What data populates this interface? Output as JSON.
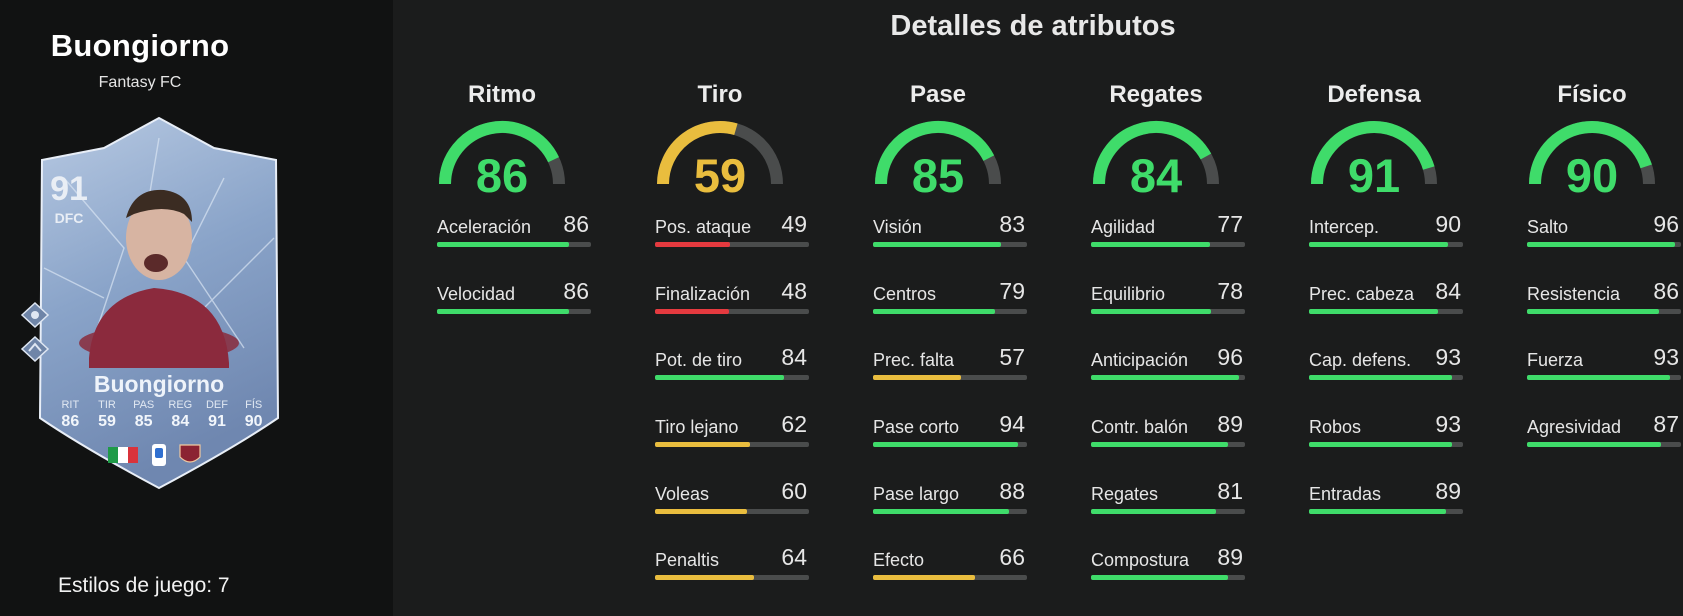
{
  "player": {
    "name": "Buongiorno",
    "subtitle": "Fantasy FC",
    "card": {
      "rating": "91",
      "position": "DFC",
      "name": "Buongiorno",
      "stat_labels": [
        "RIT",
        "TIR",
        "PAS",
        "REG",
        "DEF",
        "FÍS"
      ],
      "stat_values": [
        "86",
        "59",
        "85",
        "84",
        "91",
        "90"
      ]
    },
    "play_styles": "Estilos de juego: 7"
  },
  "title": "Detalles de atributos",
  "colors": {
    "green": "#3fdc6a",
    "yellow": "#e9bd3e",
    "red": "#e53a3f",
    "track": "#4a4c4c"
  },
  "categories": [
    {
      "name": "Ritmo",
      "value": 86,
      "color": "#3fdc6a",
      "attributes": [
        {
          "label": "Aceleración",
          "value": 86,
          "color": "#3fdc6a"
        },
        {
          "label": "Velocidad",
          "value": 86,
          "color": "#3fdc6a"
        }
      ]
    },
    {
      "name": "Tiro",
      "value": 59,
      "color": "#e9bd3e",
      "attributes": [
        {
          "label": "Pos. ataque",
          "value": 49,
          "color": "#e53a3f"
        },
        {
          "label": "Finalización",
          "value": 48,
          "color": "#e53a3f"
        },
        {
          "label": "Pot. de tiro",
          "value": 84,
          "color": "#3fdc6a"
        },
        {
          "label": "Tiro lejano",
          "value": 62,
          "color": "#e9bd3e"
        },
        {
          "label": "Voleas",
          "value": 60,
          "color": "#e9bd3e"
        },
        {
          "label": "Penaltis",
          "value": 64,
          "color": "#e9bd3e"
        }
      ]
    },
    {
      "name": "Pase",
      "value": 85,
      "color": "#3fdc6a",
      "attributes": [
        {
          "label": "Visión",
          "value": 83,
          "color": "#3fdc6a"
        },
        {
          "label": "Centros",
          "value": 79,
          "color": "#3fdc6a"
        },
        {
          "label": "Prec. falta",
          "value": 57,
          "color": "#e9bd3e"
        },
        {
          "label": "Pase corto",
          "value": 94,
          "color": "#3fdc6a"
        },
        {
          "label": "Pase largo",
          "value": 88,
          "color": "#3fdc6a"
        },
        {
          "label": "Efecto",
          "value": 66,
          "color": "#e9bd3e"
        }
      ]
    },
    {
      "name": "Regates",
      "value": 84,
      "color": "#3fdc6a",
      "attributes": [
        {
          "label": "Agilidad",
          "value": 77,
          "color": "#3fdc6a"
        },
        {
          "label": "Equilibrio",
          "value": 78,
          "color": "#3fdc6a"
        },
        {
          "label": "Anticipación",
          "value": 96,
          "color": "#3fdc6a"
        },
        {
          "label": "Contr. balón",
          "value": 89,
          "color": "#3fdc6a"
        },
        {
          "label": "Regates",
          "value": 81,
          "color": "#3fdc6a"
        },
        {
          "label": "Compostura",
          "value": 89,
          "color": "#3fdc6a"
        }
      ]
    },
    {
      "name": "Defensa",
      "value": 91,
      "color": "#3fdc6a",
      "attributes": [
        {
          "label": "Intercep.",
          "value": 90,
          "color": "#3fdc6a"
        },
        {
          "label": "Prec. cabeza",
          "value": 84,
          "color": "#3fdc6a"
        },
        {
          "label": "Cap. defens.",
          "value": 93,
          "color": "#3fdc6a"
        },
        {
          "label": "Robos",
          "value": 93,
          "color": "#3fdc6a"
        },
        {
          "label": "Entradas",
          "value": 89,
          "color": "#3fdc6a"
        }
      ]
    },
    {
      "name": "Físico",
      "value": 90,
      "color": "#3fdc6a",
      "attributes": [
        {
          "label": "Salto",
          "value": 96,
          "color": "#3fdc6a"
        },
        {
          "label": "Resistencia",
          "value": 86,
          "color": "#3fdc6a"
        },
        {
          "label": "Fuerza",
          "value": 93,
          "color": "#3fdc6a"
        },
        {
          "label": "Agresividad",
          "value": 87,
          "color": "#3fdc6a"
        }
      ]
    }
  ]
}
